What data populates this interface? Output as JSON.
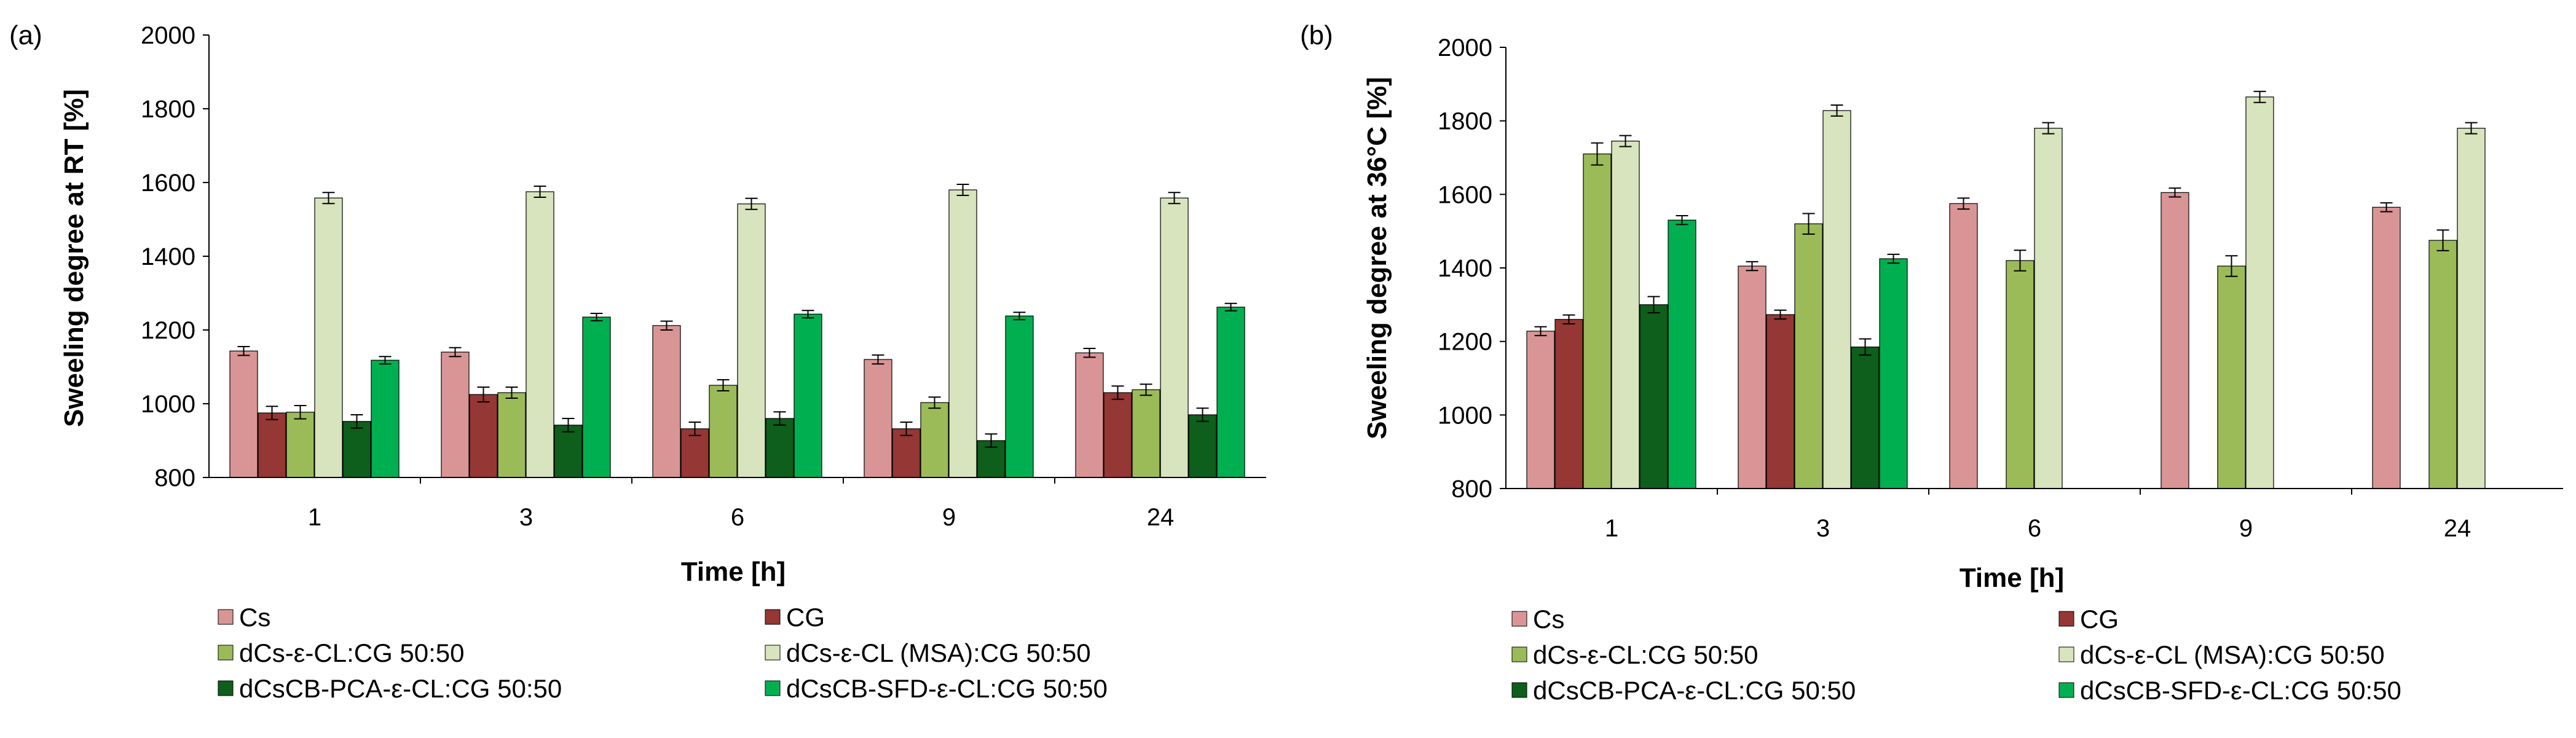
{
  "colors": {
    "Cs": "#d99595",
    "CG": "#953735",
    "dCs-ε-CL:CG 50:50": "#9bbb59",
    "dCs-ε-CL (MSA):CG 50:50": "#d7e4bd",
    "dCsCB-PCA-ε-CL:CG 50:50": "#0e5e1c",
    "dCsCB-SFD-ε-CL:CG 50:50": "#00b050"
  },
  "legend_items": [
    "Cs",
    "CG",
    "dCs-ε-CL:CG 50:50",
    "dCs-ε-CL (MSA):CG 50:50",
    "dCsCB-PCA-ε-CL:CG 50:50",
    "dCsCB-SFD-ε-CL:CG 50:50"
  ],
  "chart_data": [
    {
      "panel_label": "(a)",
      "type": "bar",
      "xlabel": "Time [h]",
      "ylabel": "Sweeling degree at RT  [%]",
      "ylim": [
        800,
        2000
      ],
      "yticks": [
        800,
        1000,
        1200,
        1400,
        1600,
        1800,
        2000
      ],
      "categories": [
        "1",
        "3",
        "6",
        "9",
        "24"
      ],
      "error_bars": true,
      "legend_position": "bottom",
      "series": [
        {
          "name": "Cs",
          "values": [
            1143,
            1140,
            1212,
            1120,
            1138
          ],
          "errors": [
            12,
            12,
            12,
            12,
            12
          ]
        },
        {
          "name": "CG",
          "values": [
            975,
            1025,
            932,
            932,
            1030
          ],
          "errors": [
            18,
            20,
            18,
            18,
            18
          ]
        },
        {
          "name": "dCs-ε-CL:CG 50:50",
          "values": [
            977,
            1030,
            1050,
            1003,
            1038
          ],
          "errors": [
            18,
            15,
            15,
            15,
            15
          ]
        },
        {
          "name": "dCs-ε-CL (MSA):CG 50:50",
          "values": [
            1558,
            1575,
            1542,
            1580,
            1558
          ],
          "errors": [
            15,
            15,
            15,
            15,
            15
          ]
        },
        {
          "name": "dCsCB-PCA-ε-CL:CG 50:50",
          "values": [
            952,
            942,
            960,
            900,
            970
          ],
          "errors": [
            18,
            18,
            18,
            18,
            18
          ]
        },
        {
          "name": "dCsCB-SFD-ε-CL:CG 50:50",
          "values": [
            1118,
            1235,
            1243,
            1238,
            1262
          ],
          "errors": [
            10,
            10,
            10,
            10,
            10
          ]
        }
      ]
    },
    {
      "panel_label": "(b)",
      "type": "bar",
      "xlabel": "Time [h]",
      "ylabel": "Sweeling degree at 36°C [%]",
      "ylim": [
        800,
        2000
      ],
      "yticks": [
        800,
        1000,
        1200,
        1400,
        1600,
        1800,
        2000
      ],
      "categories": [
        "1",
        "3",
        "6",
        "9",
        "24"
      ],
      "error_bars": true,
      "legend_position": "bottom",
      "series": [
        {
          "name": "Cs",
          "values": [
            1228,
            1405,
            1575,
            1605,
            1565
          ],
          "errors": [
            12,
            12,
            15,
            12,
            12
          ]
        },
        {
          "name": "CG",
          "values": [
            1260,
            1273,
            null,
            null,
            null
          ],
          "errors": [
            12,
            12,
            null,
            null,
            null
          ]
        },
        {
          "name": "dCs-ε-CL:CG 50:50",
          "values": [
            1710,
            1520,
            1420,
            1405,
            1475
          ],
          "errors": [
            30,
            28,
            28,
            28,
            28
          ]
        },
        {
          "name": "dCs-ε-CL (MSA):CG 50:50",
          "values": [
            1745,
            1828,
            1780,
            1865,
            1780
          ],
          "errors": [
            15,
            15,
            15,
            15,
            15
          ]
        },
        {
          "name": "dCsCB-PCA-ε-CL:CG 50:50",
          "values": [
            1300,
            1185,
            null,
            null,
            null
          ],
          "errors": [
            22,
            22,
            null,
            null,
            null
          ]
        },
        {
          "name": "dCsCB-SFD-ε-CL:CG 50:50",
          "values": [
            1530,
            1425,
            null,
            null,
            null
          ],
          "errors": [
            12,
            12,
            null,
            null,
            null
          ]
        }
      ]
    }
  ]
}
